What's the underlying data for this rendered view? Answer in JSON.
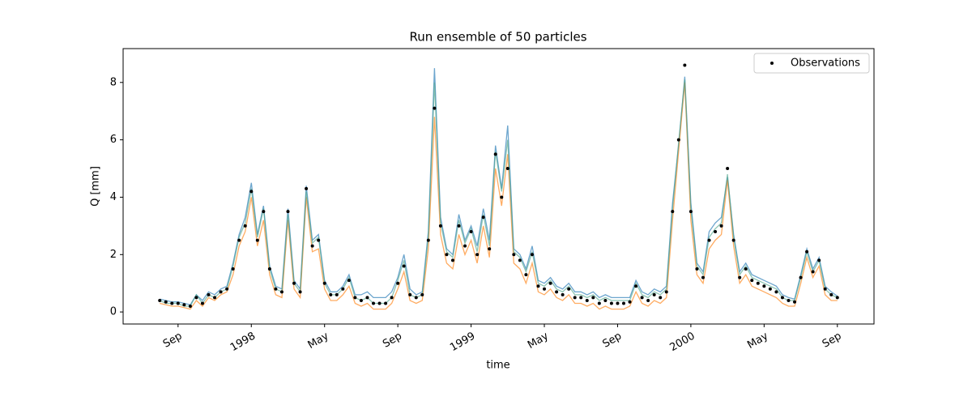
{
  "chart_data": {
    "type": "line",
    "title": "Run ensemble of 50 particles",
    "xlabel": "time",
    "ylabel": "Q [mm]",
    "legend": "upper right",
    "x": [
      "1997-08",
      "1997-08",
      "1997-08",
      "1997-09",
      "1997-09",
      "1997-09",
      "1997-10",
      "1997-10",
      "1997-10",
      "1997-11",
      "1997-11",
      "1997-11",
      "1997-12",
      "1997-12",
      "1997-12",
      "1998-01",
      "1998-01",
      "1998-01",
      "1998-02",
      "1998-02",
      "1998-02",
      "1998-03",
      "1998-03",
      "1998-03",
      "1998-04",
      "1998-04",
      "1998-04",
      "1998-05",
      "1998-05",
      "1998-05",
      "1998-06",
      "1998-06",
      "1998-06",
      "1998-07",
      "1998-07",
      "1998-07",
      "1998-08",
      "1998-08",
      "1998-08",
      "1998-09",
      "1998-09",
      "1998-09",
      "1998-10",
      "1998-10",
      "1998-10",
      "1998-11",
      "1998-11",
      "1998-11",
      "1998-12",
      "1998-12",
      "1998-12",
      "1999-01",
      "1999-01",
      "1999-01",
      "1999-02",
      "1999-02",
      "1999-02",
      "1999-03",
      "1999-03",
      "1999-03",
      "1999-04",
      "1999-04",
      "1999-04",
      "1999-05",
      "1999-05",
      "1999-05",
      "1999-06",
      "1999-06",
      "1999-06",
      "1999-07",
      "1999-07",
      "1999-07",
      "1999-08",
      "1999-08",
      "1999-08",
      "1999-09",
      "1999-09",
      "1999-09",
      "1999-10",
      "1999-10",
      "1999-10",
      "1999-11",
      "1999-11",
      "1999-11",
      "1999-12",
      "1999-12",
      "1999-12",
      "2000-01",
      "2000-01",
      "2000-01",
      "2000-02",
      "2000-02",
      "2000-02",
      "2000-03",
      "2000-03",
      "2000-03",
      "2000-04",
      "2000-04",
      "2000-04",
      "2000-05",
      "2000-05",
      "2000-05",
      "2000-06",
      "2000-06",
      "2000-06",
      "2000-07",
      "2000-07",
      "2000-07",
      "2000-08",
      "2000-08",
      "2000-08",
      "2000-09"
    ],
    "series": [
      {
        "color": "#1f77b4",
        "values": [
          0.45,
          0.4,
          0.35,
          0.35,
          0.3,
          0.25,
          0.6,
          0.4,
          0.7,
          0.6,
          0.8,
          0.9,
          1.7,
          2.7,
          3.3,
          4.5,
          2.7,
          3.7,
          1.6,
          0.9,
          0.8,
          3.6,
          1.1,
          0.8,
          4.4,
          2.5,
          2.7,
          1.1,
          0.7,
          0.7,
          0.9,
          1.3,
          0.6,
          0.6,
          0.7,
          0.5,
          0.5,
          0.5,
          0.7,
          1.2,
          2.0,
          0.8,
          0.6,
          0.7,
          2.8,
          8.5,
          3.3,
          2.2,
          2.0,
          3.4,
          2.5,
          3.0,
          2.3,
          3.6,
          2.5,
          5.8,
          4.3,
          6.5,
          2.2,
          2.0,
          1.5,
          2.3,
          1.1,
          1.0,
          1.2,
          0.9,
          0.8,
          1.0,
          0.7,
          0.7,
          0.6,
          0.7,
          0.5,
          0.6,
          0.5,
          0.5,
          0.5,
          0.5,
          1.1,
          0.7,
          0.6,
          0.8,
          0.7,
          0.9,
          3.8,
          5.8,
          8.2,
          3.8,
          1.7,
          1.4,
          2.8,
          3.1,
          3.3,
          4.7,
          2.7,
          1.4,
          1.7,
          1.3,
          1.2,
          1.1,
          1.0,
          0.9,
          0.6,
          0.5,
          0.45,
          1.3,
          2.2,
          1.5,
          1.9,
          0.9,
          0.7,
          0.55
        ]
      },
      {
        "color": "#ff7f0e",
        "values": [
          0.3,
          0.25,
          0.2,
          0.2,
          0.15,
          0.1,
          0.4,
          0.2,
          0.5,
          0.4,
          0.6,
          0.7,
          1.3,
          2.3,
          2.8,
          4.0,
          2.3,
          3.2,
          1.3,
          0.6,
          0.5,
          3.2,
          0.8,
          0.5,
          4.0,
          2.1,
          2.2,
          0.8,
          0.4,
          0.4,
          0.6,
          0.9,
          0.3,
          0.2,
          0.3,
          0.1,
          0.1,
          0.1,
          0.3,
          0.8,
          1.4,
          0.4,
          0.3,
          0.4,
          2.2,
          6.8,
          2.7,
          1.7,
          1.5,
          2.7,
          2.0,
          2.5,
          1.7,
          3.0,
          1.9,
          5.0,
          3.7,
          5.5,
          1.7,
          1.5,
          1.0,
          1.7,
          0.7,
          0.6,
          0.8,
          0.5,
          0.4,
          0.6,
          0.3,
          0.3,
          0.2,
          0.3,
          0.1,
          0.2,
          0.1,
          0.1,
          0.1,
          0.2,
          0.7,
          0.3,
          0.2,
          0.4,
          0.3,
          0.5,
          3.2,
          5.6,
          8.0,
          3.2,
          1.3,
          1.0,
          2.2,
          2.5,
          2.7,
          4.6,
          2.3,
          1.0,
          1.3,
          0.9,
          0.8,
          0.7,
          0.6,
          0.5,
          0.3,
          0.2,
          0.2,
          1.0,
          1.9,
          1.2,
          1.6,
          0.6,
          0.4,
          0.4
        ]
      },
      {
        "color": "#4fa58a",
        "values": [
          0.4,
          0.3,
          0.3,
          0.3,
          0.2,
          0.2,
          0.6,
          0.3,
          0.6,
          0.5,
          0.7,
          0.8,
          1.6,
          2.6,
          3.1,
          4.3,
          2.6,
          3.6,
          1.5,
          0.8,
          0.7,
          3.4,
          1.0,
          0.7,
          4.2,
          2.4,
          2.6,
          1.0,
          0.6,
          0.6,
          0.8,
          1.2,
          0.5,
          0.4,
          0.5,
          0.3,
          0.3,
          0.3,
          0.5,
          1.1,
          1.8,
          0.6,
          0.5,
          0.6,
          2.6,
          8.0,
          3.1,
          2.1,
          1.9,
          3.2,
          2.4,
          2.9,
          2.1,
          3.4,
          2.3,
          5.6,
          4.2,
          6.0,
          2.1,
          1.9,
          1.4,
          2.1,
          1.0,
          0.9,
          1.1,
          0.8,
          0.7,
          0.9,
          0.6,
          0.6,
          0.5,
          0.6,
          0.4,
          0.5,
          0.4,
          0.4,
          0.4,
          0.4,
          1.0,
          0.6,
          0.5,
          0.7,
          0.6,
          0.8,
          3.6,
          5.9,
          8.1,
          3.6,
          1.6,
          1.3,
          2.6,
          2.9,
          3.1,
          4.8,
          2.6,
          1.3,
          1.6,
          1.2,
          1.1,
          1.0,
          0.9,
          0.8,
          0.5,
          0.4,
          0.4,
          1.2,
          2.1,
          1.4,
          1.8,
          0.8,
          0.6,
          0.5
        ]
      },
      {
        "name": "Observations",
        "color": "#000000",
        "marker": "dot",
        "values": [
          0.4,
          0.35,
          0.3,
          0.3,
          0.25,
          0.2,
          0.5,
          0.3,
          0.6,
          0.5,
          0.7,
          0.8,
          1.5,
          2.5,
          3.0,
          4.2,
          2.5,
          3.5,
          1.5,
          0.8,
          0.7,
          3.5,
          1.0,
          0.7,
          4.3,
          2.3,
          2.5,
          1.0,
          0.6,
          0.6,
          0.8,
          1.1,
          0.5,
          0.4,
          0.5,
          0.3,
          0.3,
          0.3,
          0.5,
          1.0,
          1.6,
          0.6,
          0.5,
          0.6,
          2.5,
          7.1,
          3.0,
          2.0,
          1.8,
          3.0,
          2.3,
          2.8,
          2.0,
          3.3,
          2.2,
          5.5,
          4.0,
          5.0,
          2.0,
          1.8,
          1.3,
          2.0,
          0.9,
          0.8,
          1.0,
          0.7,
          0.6,
          0.8,
          0.5,
          0.5,
          0.4,
          0.5,
          0.3,
          0.4,
          0.3,
          0.3,
          0.3,
          0.35,
          0.9,
          0.5,
          0.4,
          0.6,
          0.5,
          0.7,
          3.5,
          6.0,
          8.6,
          3.5,
          1.5,
          1.2,
          2.5,
          2.8,
          3.0,
          5.0,
          2.5,
          1.2,
          1.5,
          1.1,
          1.0,
          0.9,
          0.8,
          0.7,
          0.5,
          0.4,
          0.35,
          1.2,
          2.1,
          1.4,
          1.8,
          0.8,
          0.6,
          0.5
        ]
      }
    ],
    "xlim": [
      "1997-06",
      "2000-11"
    ],
    "xticks": [
      {
        "value": "1997-09",
        "label": "Sep"
      },
      {
        "value": "1998-01",
        "label": "1998"
      },
      {
        "value": "1998-05",
        "label": "May"
      },
      {
        "value": "1998-09",
        "label": "Sep"
      },
      {
        "value": "1999-01",
        "label": "1999"
      },
      {
        "value": "1999-05",
        "label": "May"
      },
      {
        "value": "1999-09",
        "label": "Sep"
      },
      {
        "value": "2000-01",
        "label": "2000"
      },
      {
        "value": "2000-05",
        "label": "May"
      },
      {
        "value": "2000-09",
        "label": "Sep"
      }
    ],
    "ylim": [
      -0.42,
      9.18
    ],
    "yticks": [
      0,
      2,
      4,
      6,
      8
    ]
  }
}
